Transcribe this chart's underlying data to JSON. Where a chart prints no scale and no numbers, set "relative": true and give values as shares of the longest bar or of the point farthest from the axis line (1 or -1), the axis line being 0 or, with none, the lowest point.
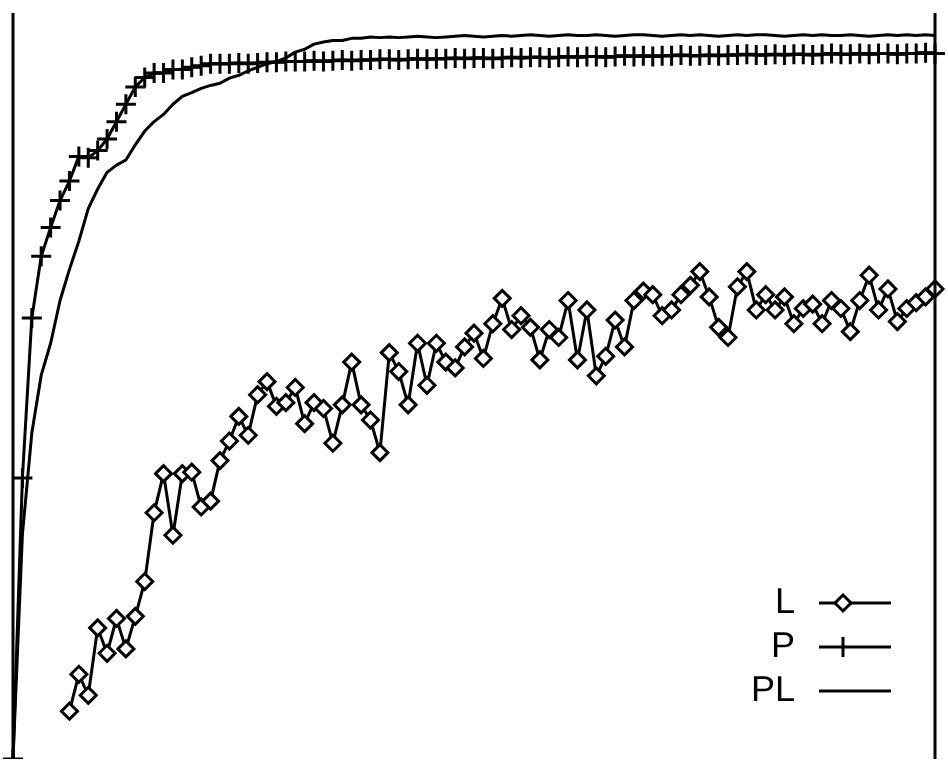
{
  "chart_data": {
    "type": "line",
    "relative": true,
    "legend": "bottom right",
    "categories": [
      null,
      null,
      null,
      null,
      null,
      null,
      null,
      null,
      null,
      null,
      null,
      null,
      null,
      null,
      null,
      null,
      null,
      null,
      null,
      null,
      null,
      null,
      null,
      null,
      null,
      null,
      null,
      null,
      null,
      null,
      null,
      null,
      null,
      null,
      null,
      null,
      null,
      null,
      null,
      null,
      null,
      null,
      null,
      null,
      null,
      null,
      null,
      null,
      null,
      null,
      null,
      null,
      null,
      null,
      null,
      null,
      null,
      null,
      null,
      null,
      null,
      null,
      null,
      null,
      null,
      null,
      null,
      null,
      null,
      null,
      null,
      null,
      null,
      null,
      null,
      null,
      null,
      null,
      null,
      null,
      null,
      null,
      null,
      null,
      null,
      null,
      null,
      null,
      null,
      null,
      null,
      null,
      null,
      null,
      null,
      null,
      null,
      null,
      null
    ],
    "series": [
      {
        "name": "L",
        "color": "#000000",
        "marker": "diamond",
        "values": [
          null,
          null,
          null,
          null,
          null,
          null,
          0.066,
          0.117,
          0.088,
          0.181,
          0.146,
          0.194,
          0.152,
          0.197,
          0.245,
          0.34,
          0.394,
          0.309,
          0.394,
          0.396,
          0.348,
          0.356,
          0.412,
          0.439,
          0.473,
          0.447,
          0.503,
          0.521,
          0.487,
          0.492,
          0.513,
          0.463,
          0.492,
          0.484,
          0.436,
          0.489,
          0.548,
          0.489,
          0.468,
          0.423,
          0.561,
          0.535,
          0.489,
          0.574,
          0.516,
          0.574,
          0.548,
          0.54,
          0.569,
          0.588,
          0.553,
          0.601,
          0.636,
          0.593,
          0.612,
          0.596,
          0.551,
          0.593,
          0.582,
          0.633,
          0.551,
          0.62,
          0.529,
          0.556,
          0.606,
          0.569,
          0.633,
          0.646,
          0.641,
          0.612,
          0.62,
          0.641,
          0.654,
          0.673,
          0.638,
          0.596,
          0.582,
          0.652,
          0.673,
          0.62,
          0.641,
          0.62,
          0.638,
          0.601,
          0.622,
          0.628,
          0.601,
          0.633,
          0.622,
          0.59,
          0.633,
          0.668,
          0.62,
          0.649,
          0.604,
          0.622,
          0.63,
          0.638,
          0.649
        ]
      },
      {
        "name": "P",
        "color": "#000000",
        "marker": "cross",
        "values": [
          0,
          0.388,
          0.609,
          0.694,
          0.734,
          0.771,
          0.798,
          0.832,
          0.83,
          0.84,
          0.856,
          0.88,
          0.904,
          0.928,
          0.941,
          0.947,
          0.947,
          0.952,
          0.952,
          0.955,
          0.957,
          0.96,
          0.96,
          0.96,
          0.961,
          0.96,
          0.961,
          0.962,
          0.962,
          0.963,
          0.963,
          0.963,
          0.964,
          0.963,
          0.964,
          0.965,
          0.964,
          0.965,
          0.965,
          0.966,
          0.966,
          0.965,
          0.966,
          0.967,
          0.966,
          0.967,
          0.967,
          0.968,
          0.967,
          0.968,
          0.968,
          0.967,
          0.968,
          0.969,
          0.968,
          0.969,
          0.969,
          0.968,
          0.969,
          0.97,
          0.969,
          0.97,
          0.97,
          0.969,
          0.97,
          0.971,
          0.97,
          0.971,
          0.97,
          0.971,
          0.971,
          0.972,
          0.971,
          0.971,
          0.972,
          0.971,
          0.972,
          0.972,
          0.973,
          0.972,
          0.972,
          0.973,
          0.972,
          0.973,
          0.973,
          0.972,
          0.973,
          0.974,
          0.973,
          0.973,
          0.974,
          0.973,
          0.974,
          0.974,
          0.973,
          0.974,
          0.974,
          0.975,
          0.974
        ]
      },
      {
        "name": "PL",
        "color": "#000000",
        "marker": "none",
        "values": [
          0,
          0.31,
          0.45,
          0.53,
          0.574,
          0.633,
          0.676,
          0.715,
          0.76,
          0.787,
          0.81,
          0.82,
          0.827,
          0.848,
          0.867,
          0.88,
          0.89,
          0.904,
          0.915,
          0.92,
          0.926,
          0.93,
          0.933,
          0.94,
          0.944,
          0.95,
          0.955,
          0.96,
          0.963,
          0.968,
          0.976,
          0.98,
          0.987,
          0.99,
          0.992,
          0.992,
          0.995,
          0.995,
          0.997,
          0.996,
          0.997,
          0.996,
          0.997,
          0.998,
          0.997,
          0.996,
          0.997,
          0.998,
          0.999,
          0.998,
          0.997,
          0.998,
          0.999,
          0.998,
          0.999,
          1,
          0.999,
          0.998,
          0.999,
          1,
          0.999,
          0.999,
          1,
          0.999,
          0.998,
          0.999,
          1,
          1,
          0.999,
          0.998,
          0.999,
          1,
          0.999,
          1,
          0.999,
          0.998,
          0.999,
          1,
          0.999,
          1,
          1,
          0.999,
          0.998,
          0.999,
          1,
          0.999,
          1,
          0.999,
          0.999,
          1,
          0.999,
          0.998,
          0.999,
          1,
          0.999,
          1,
          0.999,
          1,
          0.999
        ]
      }
    ]
  }
}
